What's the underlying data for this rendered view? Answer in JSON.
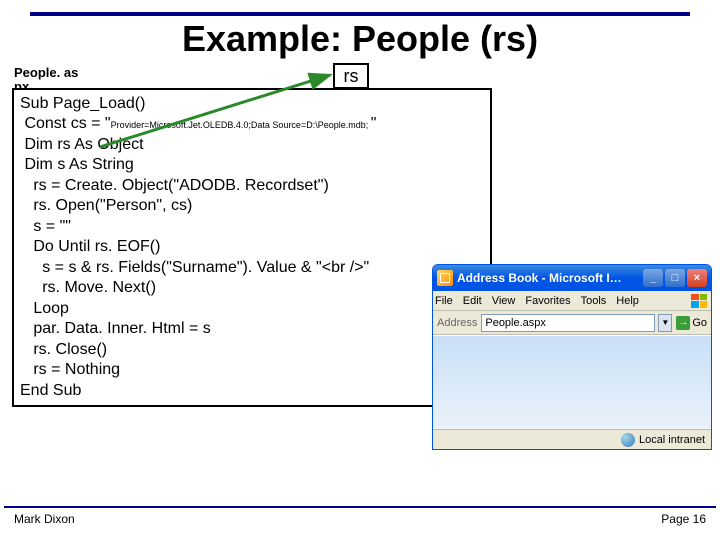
{
  "slide": {
    "title": "Example: People (rs)",
    "filename_line1": "People. as",
    "filename_line2": "px",
    "rs_label": "rs",
    "footer_left": "Mark Dixon",
    "footer_right": "Page 16",
    "accent_color": "#000088"
  },
  "code": {
    "lines": [
      {
        "text": "Sub Page_Load()",
        "indent": 0
      },
      {
        "text": " Const cs = \"",
        "indent": 0,
        "tail_small": "Provider=Microsoft.Jet.OLEDB.4.0;Data Source=D:\\People.mdb; ",
        "tail_after": "\""
      },
      {
        "text": " Dim rs As Object",
        "indent": 0
      },
      {
        "text": " Dim s As String",
        "indent": 0
      },
      {
        "text": "   rs = Create. Object(\"ADODB. Recordset\")",
        "indent": 0
      },
      {
        "text": "   rs. Open(\"Person\", cs)",
        "indent": 0
      },
      {
        "text": "   s = \"\"",
        "indent": 0
      },
      {
        "text": "   Do Until rs. EOF()",
        "indent": 0
      },
      {
        "text": "     s = s & rs. Fields(\"Surname\"). Value & \"<br />\"",
        "indent": 0
      },
      {
        "text": "     rs. Move. Next()",
        "indent": 0
      },
      {
        "text": "   Loop",
        "indent": 0
      },
      {
        "text": "   par. Data. Inner. Html = s",
        "indent": 0
      },
      {
        "text": "   rs. Close()",
        "indent": 0
      },
      {
        "text": "   rs = Nothing",
        "indent": 0
      },
      {
        "text": "End Sub",
        "indent": 0
      }
    ]
  },
  "browser": {
    "title": "Address Book - Microsoft I…",
    "menu": [
      "File",
      "Edit",
      "View",
      "Favorites",
      "Tools",
      "Help"
    ],
    "address_label": "Address",
    "address_value": "People.aspx",
    "go_label": "Go",
    "status_text": "Local intranet",
    "colors": {
      "titlebar_start": "#3c8cde",
      "titlebar_end": "#0054e3",
      "chrome_bg": "#ece9d8",
      "content_bg_top": "#c9e0f7",
      "content_bg_bottom": "#eaf2fb"
    }
  }
}
